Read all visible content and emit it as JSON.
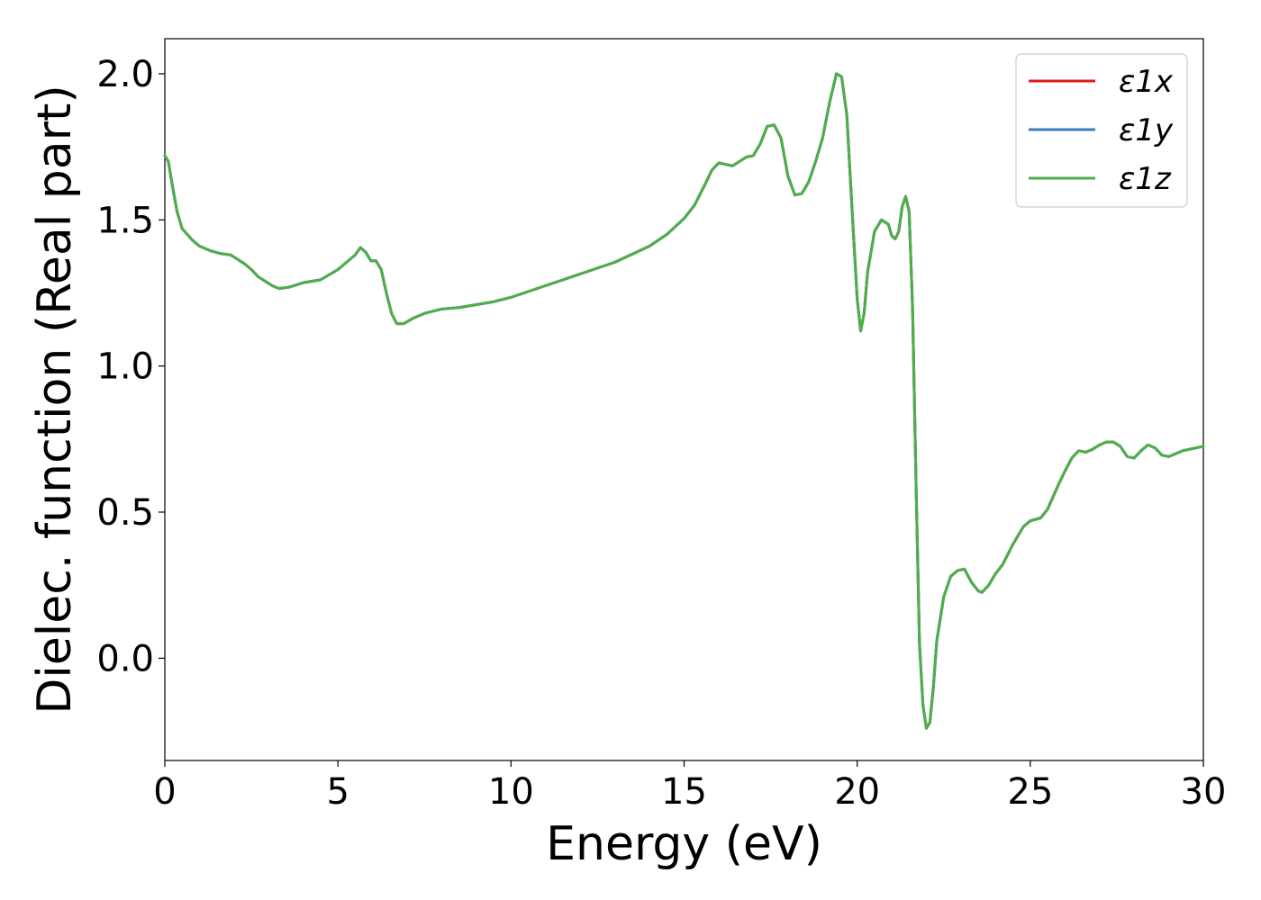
{
  "chart_data": {
    "type": "line",
    "title": "",
    "xlabel": "Energy (eV)",
    "ylabel": "Dielec. function (Real part)",
    "xlim": [
      0,
      30
    ],
    "ylim": [
      -0.35,
      2.12
    ],
    "xticks": [
      0,
      5,
      10,
      15,
      20,
      25,
      30
    ],
    "yticks": [
      0.0,
      0.5,
      1.0,
      1.5,
      2.0
    ],
    "xtick_labels": [
      "0",
      "5",
      "10",
      "15",
      "20",
      "25",
      "30"
    ],
    "ytick_labels": [
      "0.0",
      "0.5",
      "1.0",
      "1.5",
      "2.0"
    ],
    "grid": false,
    "legend_position": "top-right",
    "series": [
      {
        "name": "ε1x",
        "color": "#e41a1c",
        "x": [
          0,
          0.1,
          0.2,
          0.35,
          0.5,
          0.8,
          1.0,
          1.3,
          1.6,
          1.9,
          2.1,
          2.3,
          2.5,
          2.7,
          2.9,
          3.1,
          3.3,
          3.6,
          4.0,
          4.5,
          5.0,
          5.3,
          5.5,
          5.65,
          5.8,
          5.95,
          6.1,
          6.25,
          6.4,
          6.55,
          6.7,
          6.9,
          7.2,
          7.5,
          8.0,
          8.5,
          9.0,
          9.5,
          10.0,
          11.0,
          12.0,
          13.0,
          14.0,
          14.5,
          15.0,
          15.3,
          15.6,
          15.8,
          16.0,
          16.2,
          16.4,
          16.6,
          16.8,
          17.0,
          17.2,
          17.4,
          17.6,
          17.8,
          18.0,
          18.2,
          18.4,
          18.6,
          18.8,
          19.0,
          19.2,
          19.4,
          19.55,
          19.7,
          19.85,
          20.0,
          20.1,
          20.2,
          20.3,
          20.5,
          20.7,
          20.9,
          21.0,
          21.1,
          21.2,
          21.3,
          21.4,
          21.5,
          21.6,
          21.7,
          21.8,
          21.9,
          22.0,
          22.1,
          22.2,
          22.3,
          22.5,
          22.7,
          22.9,
          23.1,
          23.3,
          23.5,
          23.6,
          23.8,
          24.0,
          24.2,
          24.5,
          24.8,
          25.0,
          25.3,
          25.5,
          25.8,
          26.0,
          26.2,
          26.4,
          26.6,
          26.8,
          27.0,
          27.2,
          27.4,
          27.6,
          27.8,
          28.0,
          28.2,
          28.4,
          28.6,
          28.8,
          29.0,
          29.2,
          29.4,
          29.6,
          29.8,
          30.0
        ],
        "y": [
          1.72,
          1.7,
          1.63,
          1.53,
          1.47,
          1.43,
          1.41,
          1.395,
          1.385,
          1.38,
          1.365,
          1.35,
          1.33,
          1.305,
          1.29,
          1.275,
          1.265,
          1.27,
          1.285,
          1.295,
          1.33,
          1.36,
          1.38,
          1.405,
          1.39,
          1.36,
          1.36,
          1.33,
          1.25,
          1.18,
          1.145,
          1.145,
          1.165,
          1.18,
          1.195,
          1.2,
          1.21,
          1.22,
          1.235,
          1.275,
          1.315,
          1.355,
          1.41,
          1.45,
          1.505,
          1.55,
          1.62,
          1.67,
          1.695,
          1.69,
          1.685,
          1.7,
          1.715,
          1.72,
          1.76,
          1.82,
          1.825,
          1.78,
          1.65,
          1.585,
          1.59,
          1.63,
          1.7,
          1.78,
          1.9,
          2.0,
          1.99,
          1.86,
          1.54,
          1.23,
          1.12,
          1.18,
          1.32,
          1.46,
          1.5,
          1.485,
          1.445,
          1.435,
          1.46,
          1.545,
          1.58,
          1.53,
          1.2,
          0.6,
          0.05,
          -0.16,
          -0.24,
          -0.22,
          -0.1,
          0.06,
          0.21,
          0.28,
          0.3,
          0.305,
          0.26,
          0.23,
          0.225,
          0.25,
          0.29,
          0.32,
          0.39,
          0.45,
          0.47,
          0.48,
          0.51,
          0.59,
          0.64,
          0.685,
          0.71,
          0.705,
          0.715,
          0.73,
          0.74,
          0.74,
          0.725,
          0.69,
          0.685,
          0.71,
          0.73,
          0.72,
          0.695,
          0.69,
          0.7,
          0.71,
          0.715,
          0.72,
          0.725
        ]
      },
      {
        "name": "ε1y",
        "color": "#377eb8",
        "x": [
          0,
          0.1,
          0.2,
          0.35,
          0.5,
          0.8,
          1.0,
          1.3,
          1.6,
          1.9,
          2.1,
          2.3,
          2.5,
          2.7,
          2.9,
          3.1,
          3.3,
          3.6,
          4.0,
          4.5,
          5.0,
          5.3,
          5.5,
          5.65,
          5.8,
          5.95,
          6.1,
          6.25,
          6.4,
          6.55,
          6.7,
          6.9,
          7.2,
          7.5,
          8.0,
          8.5,
          9.0,
          9.5,
          10.0,
          11.0,
          12.0,
          13.0,
          14.0,
          14.5,
          15.0,
          15.3,
          15.6,
          15.8,
          16.0,
          16.2,
          16.4,
          16.6,
          16.8,
          17.0,
          17.2,
          17.4,
          17.6,
          17.8,
          18.0,
          18.2,
          18.4,
          18.6,
          18.8,
          19.0,
          19.2,
          19.4,
          19.55,
          19.7,
          19.85,
          20.0,
          20.1,
          20.2,
          20.3,
          20.5,
          20.7,
          20.9,
          21.0,
          21.1,
          21.2,
          21.3,
          21.4,
          21.5,
          21.6,
          21.7,
          21.8,
          21.9,
          22.0,
          22.1,
          22.2,
          22.3,
          22.5,
          22.7,
          22.9,
          23.1,
          23.3,
          23.5,
          23.6,
          23.8,
          24.0,
          24.2,
          24.5,
          24.8,
          25.0,
          25.3,
          25.5,
          25.8,
          26.0,
          26.2,
          26.4,
          26.6,
          26.8,
          27.0,
          27.2,
          27.4,
          27.6,
          27.8,
          28.0,
          28.2,
          28.4,
          28.6,
          28.8,
          29.0,
          29.2,
          29.4,
          29.6,
          29.8,
          30.0
        ],
        "y": [
          1.72,
          1.7,
          1.63,
          1.53,
          1.47,
          1.43,
          1.41,
          1.395,
          1.385,
          1.38,
          1.365,
          1.35,
          1.33,
          1.305,
          1.29,
          1.275,
          1.265,
          1.27,
          1.285,
          1.295,
          1.33,
          1.36,
          1.38,
          1.405,
          1.39,
          1.36,
          1.36,
          1.33,
          1.25,
          1.18,
          1.145,
          1.145,
          1.165,
          1.18,
          1.195,
          1.2,
          1.21,
          1.22,
          1.235,
          1.275,
          1.315,
          1.355,
          1.41,
          1.45,
          1.505,
          1.55,
          1.62,
          1.67,
          1.695,
          1.69,
          1.685,
          1.7,
          1.715,
          1.72,
          1.76,
          1.82,
          1.825,
          1.78,
          1.65,
          1.585,
          1.59,
          1.63,
          1.7,
          1.78,
          1.9,
          2.0,
          1.99,
          1.86,
          1.54,
          1.23,
          1.12,
          1.18,
          1.32,
          1.46,
          1.5,
          1.485,
          1.445,
          1.435,
          1.46,
          1.545,
          1.58,
          1.53,
          1.2,
          0.6,
          0.05,
          -0.16,
          -0.24,
          -0.22,
          -0.1,
          0.06,
          0.21,
          0.28,
          0.3,
          0.305,
          0.26,
          0.23,
          0.225,
          0.25,
          0.29,
          0.32,
          0.39,
          0.45,
          0.47,
          0.48,
          0.51,
          0.59,
          0.64,
          0.685,
          0.71,
          0.705,
          0.715,
          0.73,
          0.74,
          0.74,
          0.725,
          0.69,
          0.685,
          0.71,
          0.73,
          0.72,
          0.695,
          0.69,
          0.7,
          0.71,
          0.715,
          0.72,
          0.725
        ]
      },
      {
        "name": "ε1z",
        "color": "#4daf4a",
        "x": [
          0,
          0.1,
          0.2,
          0.35,
          0.5,
          0.8,
          1.0,
          1.3,
          1.6,
          1.9,
          2.1,
          2.3,
          2.5,
          2.7,
          2.9,
          3.1,
          3.3,
          3.6,
          4.0,
          4.5,
          5.0,
          5.3,
          5.5,
          5.65,
          5.8,
          5.95,
          6.1,
          6.25,
          6.4,
          6.55,
          6.7,
          6.9,
          7.2,
          7.5,
          8.0,
          8.5,
          9.0,
          9.5,
          10.0,
          11.0,
          12.0,
          13.0,
          14.0,
          14.5,
          15.0,
          15.3,
          15.6,
          15.8,
          16.0,
          16.2,
          16.4,
          16.6,
          16.8,
          17.0,
          17.2,
          17.4,
          17.6,
          17.8,
          18.0,
          18.2,
          18.4,
          18.6,
          18.8,
          19.0,
          19.2,
          19.4,
          19.55,
          19.7,
          19.85,
          20.0,
          20.1,
          20.2,
          20.3,
          20.5,
          20.7,
          20.9,
          21.0,
          21.1,
          21.2,
          21.3,
          21.4,
          21.5,
          21.6,
          21.7,
          21.8,
          21.9,
          22.0,
          22.1,
          22.2,
          22.3,
          22.5,
          22.7,
          22.9,
          23.1,
          23.3,
          23.5,
          23.6,
          23.8,
          24.0,
          24.2,
          24.5,
          24.8,
          25.0,
          25.3,
          25.5,
          25.8,
          26.0,
          26.2,
          26.4,
          26.6,
          26.8,
          27.0,
          27.2,
          27.4,
          27.6,
          27.8,
          28.0,
          28.2,
          28.4,
          28.6,
          28.8,
          29.0,
          29.2,
          29.4,
          29.6,
          29.8,
          30.0
        ],
        "y": [
          1.72,
          1.7,
          1.63,
          1.53,
          1.47,
          1.43,
          1.41,
          1.395,
          1.385,
          1.38,
          1.365,
          1.35,
          1.33,
          1.305,
          1.29,
          1.275,
          1.265,
          1.27,
          1.285,
          1.295,
          1.33,
          1.36,
          1.38,
          1.405,
          1.39,
          1.36,
          1.36,
          1.33,
          1.25,
          1.18,
          1.145,
          1.145,
          1.165,
          1.18,
          1.195,
          1.2,
          1.21,
          1.22,
          1.235,
          1.275,
          1.315,
          1.355,
          1.41,
          1.45,
          1.505,
          1.55,
          1.62,
          1.67,
          1.695,
          1.69,
          1.685,
          1.7,
          1.715,
          1.72,
          1.76,
          1.82,
          1.825,
          1.78,
          1.65,
          1.585,
          1.59,
          1.63,
          1.7,
          1.78,
          1.9,
          2.0,
          1.99,
          1.86,
          1.54,
          1.23,
          1.12,
          1.18,
          1.32,
          1.46,
          1.5,
          1.485,
          1.445,
          1.435,
          1.46,
          1.545,
          1.58,
          1.53,
          1.2,
          0.6,
          0.05,
          -0.16,
          -0.24,
          -0.22,
          -0.1,
          0.06,
          0.21,
          0.28,
          0.3,
          0.305,
          0.26,
          0.23,
          0.225,
          0.25,
          0.29,
          0.32,
          0.39,
          0.45,
          0.47,
          0.48,
          0.51,
          0.59,
          0.64,
          0.685,
          0.71,
          0.705,
          0.715,
          0.73,
          0.74,
          0.74,
          0.725,
          0.69,
          0.685,
          0.71,
          0.73,
          0.72,
          0.695,
          0.69,
          0.7,
          0.71,
          0.715,
          0.72,
          0.725
        ]
      }
    ]
  }
}
